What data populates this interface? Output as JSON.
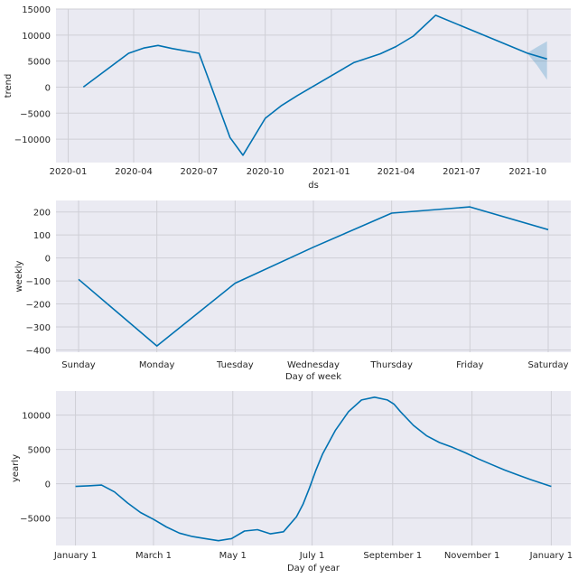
{
  "figure": {
    "background": "#ffffff",
    "plot_bg": "#eaeaf2",
    "grid_color": "#cfcfd6",
    "line_color": "#0072b2",
    "band_color": "#0072b2"
  },
  "chart_data": [
    {
      "type": "line",
      "title": "",
      "xlabel": "ds",
      "ylabel": "trend",
      "ylim": [
        -14500,
        15000
      ],
      "y_ticks": [
        -10000,
        -5000,
        0,
        5000,
        10000,
        15000
      ],
      "y_tick_labels": [
        "−10000",
        "−5000",
        "0",
        "5000",
        "10000",
        "15000"
      ],
      "x_ticks": [
        "2020-01",
        "2020-04",
        "2020-07",
        "2020-10",
        "2021-01",
        "2021-04",
        "2021-07",
        "2021-10"
      ],
      "x_range": [
        "2019-12-15",
        "2021-11-30"
      ],
      "grid": true,
      "series": [
        {
          "x": [
            "2020-01-22",
            "2020-03-25",
            "2020-04-15",
            "2020-05-05",
            "2020-05-25",
            "2020-07-01",
            "2020-08-13",
            "2020-08-31",
            "2020-10-01",
            "2020-10-23",
            "2020-11-15",
            "2021-02-01",
            "2021-03-10",
            "2021-04-01",
            "2021-04-25",
            "2021-05-26",
            "2021-10-01",
            "2021-10-28"
          ],
          "y": [
            0,
            6500,
            7500,
            8000,
            7400,
            6500,
            -9700,
            -13100,
            -6000,
            -3600,
            -1600,
            4700,
            6400,
            7800,
            9800,
            13800,
            6500,
            5400
          ]
        }
      ],
      "uncertainty": {
        "x": [
          "2021-10-01",
          "2021-10-14",
          "2021-10-28"
        ],
        "upper": [
          6600,
          7700,
          8800
        ],
        "lower": [
          6400,
          4200,
          1400
        ]
      }
    },
    {
      "type": "line",
      "title": "",
      "xlabel": "Day of week",
      "ylabel": "weekly",
      "ylim": [
        -410,
        250
      ],
      "y_ticks": [
        -400,
        -300,
        -200,
        -100,
        0,
        100,
        200
      ],
      "y_tick_labels": [
        "−400",
        "−300",
        "−200",
        "−100",
        "0",
        "100",
        "200"
      ],
      "categories": [
        "Sunday",
        "Monday",
        "Tuesday",
        "Wednesday",
        "Thursday",
        "Friday",
        "Saturday"
      ],
      "grid": true,
      "series": [
        {
          "values": [
            -93,
            -383,
            -110,
            47,
            195,
            222,
            123
          ]
        }
      ]
    },
    {
      "type": "line",
      "title": "",
      "xlabel": "Day of year",
      "ylabel": "yearly",
      "ylim": [
        -9000,
        13500
      ],
      "y_ticks": [
        -5000,
        0,
        5000,
        10000
      ],
      "y_tick_labels": [
        "−5000",
        "0",
        "5000",
        "10000"
      ],
      "x_ticks": [
        0,
        60,
        121,
        182,
        244,
        305,
        366
      ],
      "x_tick_labels": [
        "January 1",
        "March 1",
        "May 1",
        "July 1",
        "September 1",
        "November 1",
        "January 1"
      ],
      "x_range": [
        -15,
        381
      ],
      "grid": true,
      "series": [
        {
          "x": [
            0,
            10,
            20,
            30,
            40,
            50,
            60,
            70,
            80,
            90,
            100,
            110,
            120,
            130,
            140,
            150,
            160,
            170,
            175,
            180,
            185,
            190,
            200,
            210,
            220,
            230,
            240,
            245,
            250,
            260,
            270,
            280,
            290,
            300,
            310,
            320,
            330,
            340,
            350,
            366
          ],
          "y": [
            -400,
            -300,
            -200,
            -1200,
            -2800,
            -4200,
            -5200,
            -6300,
            -7200,
            -7700,
            -8000,
            -8300,
            -8000,
            -6900,
            -6700,
            -7300,
            -7000,
            -4800,
            -3000,
            -600,
            2000,
            4300,
            7800,
            10500,
            12200,
            12600,
            12200,
            11600,
            10500,
            8500,
            7000,
            6000,
            5300,
            4500,
            3600,
            2800,
            2000,
            1300,
            600,
            -400
          ]
        }
      ]
    }
  ]
}
